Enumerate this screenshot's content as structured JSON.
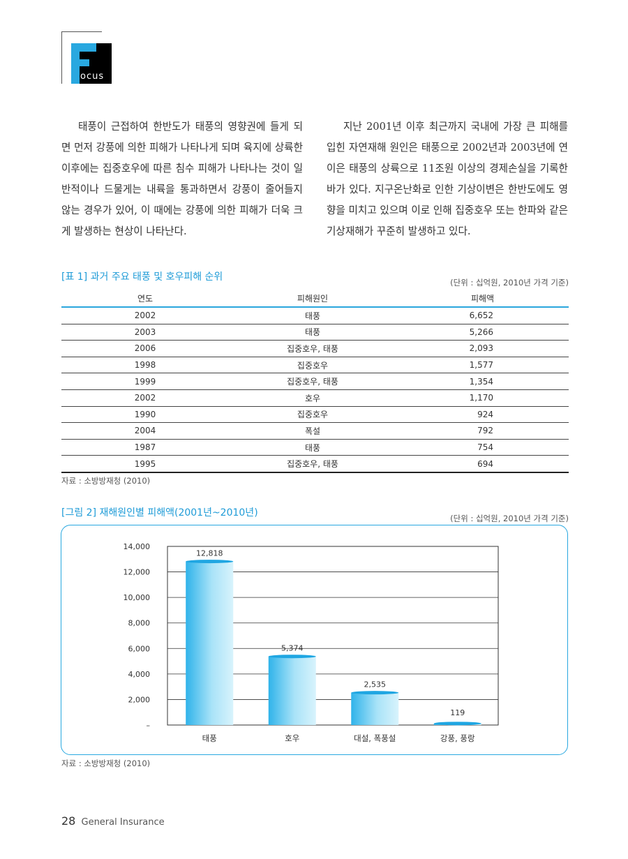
{
  "logo": {
    "letter": "F",
    "rest": "ocus"
  },
  "body": {
    "left_paragraph": "태풍이 근접하여 한반도가 태풍의 영향권에 들게 되면 먼저 강풍에 의한 피해가 나타나게 되며 육지에 상륙한 이후에는 집중호우에 따른 침수 피해가 나타나는 것이 일반적이나 드물게는 내륙을 통과하면서 강풍이 줄어들지 않는 경우가 있어, 이 때에는 강풍에 의한 피해가 더욱 크게 발생하는 현상이 나타난다.",
    "right_paragraph": "지난 2001년 이후 최근까지 국내에 가장 큰 피해를 입힌 자연재해 원인은 태풍으로 2002년과 2003년에 연이은 태풍의 상륙으로 11조원 이상의 경제손실을 기록한 바가 있다. 지구온난화로 인한 기상이변은 한반도에도 영향을 미치고 있으며 이로 인해 집중호우 또는 한파와 같은 기상재해가 꾸준히 발생하고 있다."
  },
  "table1": {
    "caption": "[표 1] 과거 주요 태풍 및 호우피해 순위",
    "unit": "(단위 : 십억원, 2010년 가격 기준)",
    "headers": [
      "연도",
      "피해원인",
      "피해액"
    ],
    "rows": [
      [
        "2002",
        "태풍",
        "6,652"
      ],
      [
        "2003",
        "태풍",
        "5,266"
      ],
      [
        "2006",
        "집중호우, 태풍",
        "2,093"
      ],
      [
        "1998",
        "집중호우",
        "1,577"
      ],
      [
        "1999",
        "집중호우, 태풍",
        "1,354"
      ],
      [
        "2002",
        "호우",
        "1,170"
      ],
      [
        "1990",
        "집중호우",
        "924"
      ],
      [
        "2004",
        "폭설",
        "792"
      ],
      [
        "1987",
        "태풍",
        "754"
      ],
      [
        "1995",
        "집중호우, 태풍",
        "694"
      ]
    ],
    "source": "자료 : 소방방재청 (2010)"
  },
  "figure2": {
    "caption": "[그림 2] 재해원인별 피해액(2001년~2010년)",
    "unit": "(단위 : 십억원, 2010년 가격 기준)",
    "source": "자료 : 소방방재청 (2010)"
  },
  "chart_data": {
    "type": "bar",
    "categories": [
      "태풍",
      "호우",
      "대설, 폭풍설",
      "강풍, 풍랑"
    ],
    "values": [
      12818,
      5374,
      2535,
      119
    ],
    "value_labels": [
      "12,818",
      "5,374",
      "2,535",
      "119"
    ],
    "ylim": [
      0,
      14000
    ],
    "y_ticks": [
      0,
      2000,
      4000,
      6000,
      8000,
      10000,
      12000,
      14000
    ],
    "y_tick_labels": [
      "–",
      "2,000",
      "4,000",
      "6,000",
      "8,000",
      "10,000",
      "12,000",
      "14,000"
    ],
    "grid": true,
    "bar_color": "#5cc8f0"
  },
  "footer": {
    "page_number": "28",
    "publication": "General Insurance"
  }
}
